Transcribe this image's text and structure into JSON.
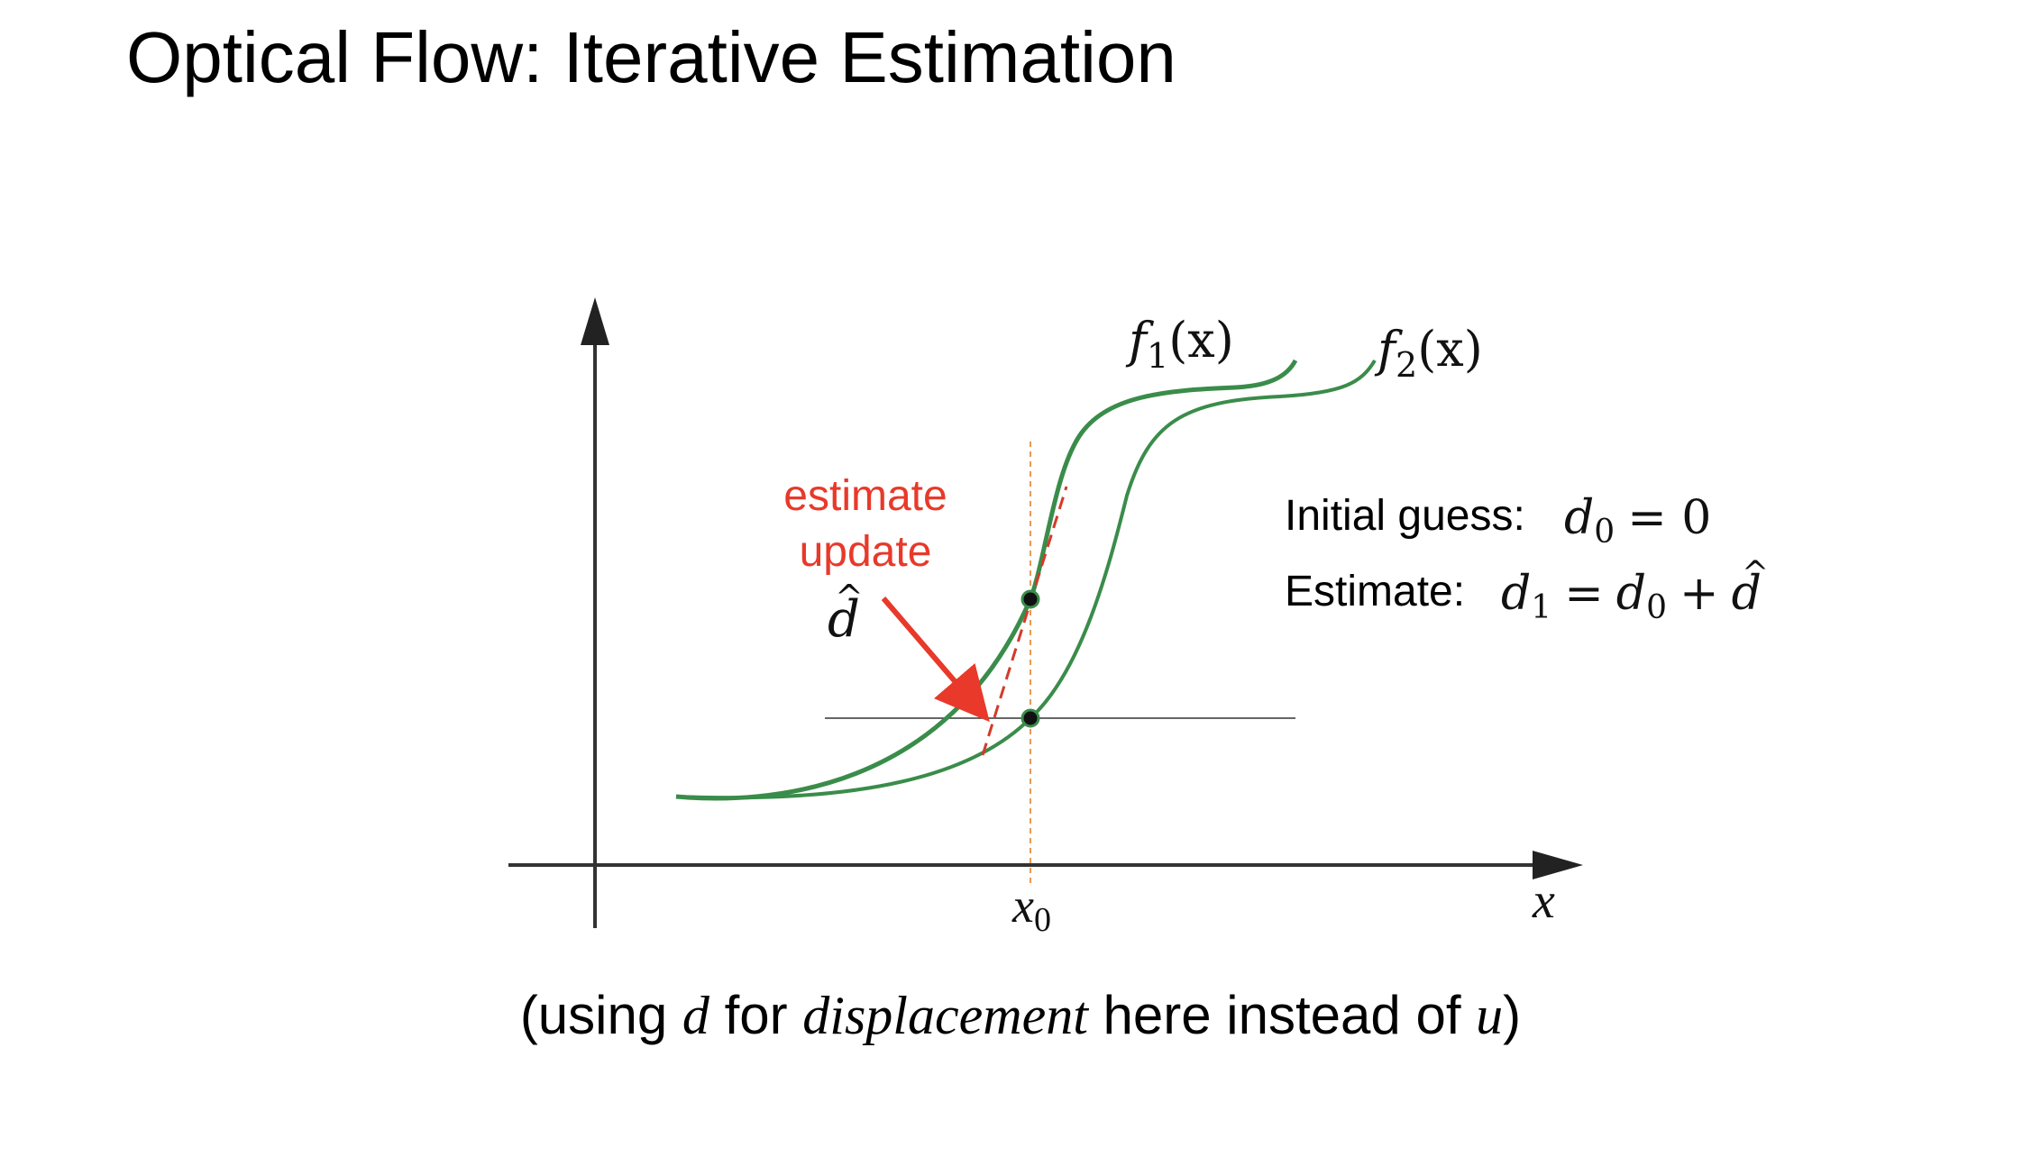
{
  "title": "Optical Flow: Iterative Estimation",
  "labels": {
    "f1": "f",
    "f1_sub": "1",
    "f1_arg": "(x)",
    "f2": "f",
    "f2_sub": "2",
    "f2_arg": "(x)",
    "x_axis": "x",
    "x0": "x",
    "x0_sub": "0",
    "estimate_line1": "estimate",
    "estimate_line2": "update",
    "d_hat": "d",
    "d_hat_accent": "^"
  },
  "equations": {
    "initial_label": "Initial guess:",
    "initial_d": "d",
    "initial_sub": "0",
    "initial_rhs": "= 0",
    "estimate_label": "Estimate:",
    "est_d1": "d",
    "est_d1_sub": "1",
    "est_eq": "=",
    "est_d0": "d",
    "est_d0_sub": "0",
    "est_plus": "+",
    "est_dhat": "d",
    "est_dhat_accent": "^"
  },
  "caption": {
    "part1": "(using ",
    "var_d": "d",
    "part2": " for ",
    "word_displacement": "displacement",
    "part3": " here instead of ",
    "var_u": "u",
    "part4": ")"
  },
  "colors": {
    "curve": "#3a8c4a",
    "annotation": "#e8392a",
    "tangent": "#d43a2a",
    "guide": "#e89a55",
    "axis": "#333333"
  }
}
